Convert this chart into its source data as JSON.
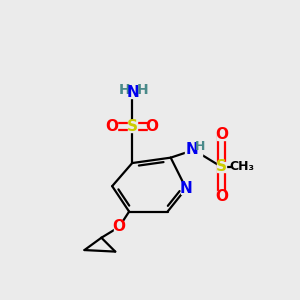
{
  "bg_color": "#ebebeb",
  "atom_colors": {
    "C": "#000000",
    "H": "#4a8a8a",
    "N": "#0000ee",
    "O": "#ff0000",
    "S": "#cccc00"
  },
  "bond_color": "#000000",
  "bond_width": 1.6,
  "figsize": [
    3.0,
    3.0
  ],
  "dpi": 100
}
